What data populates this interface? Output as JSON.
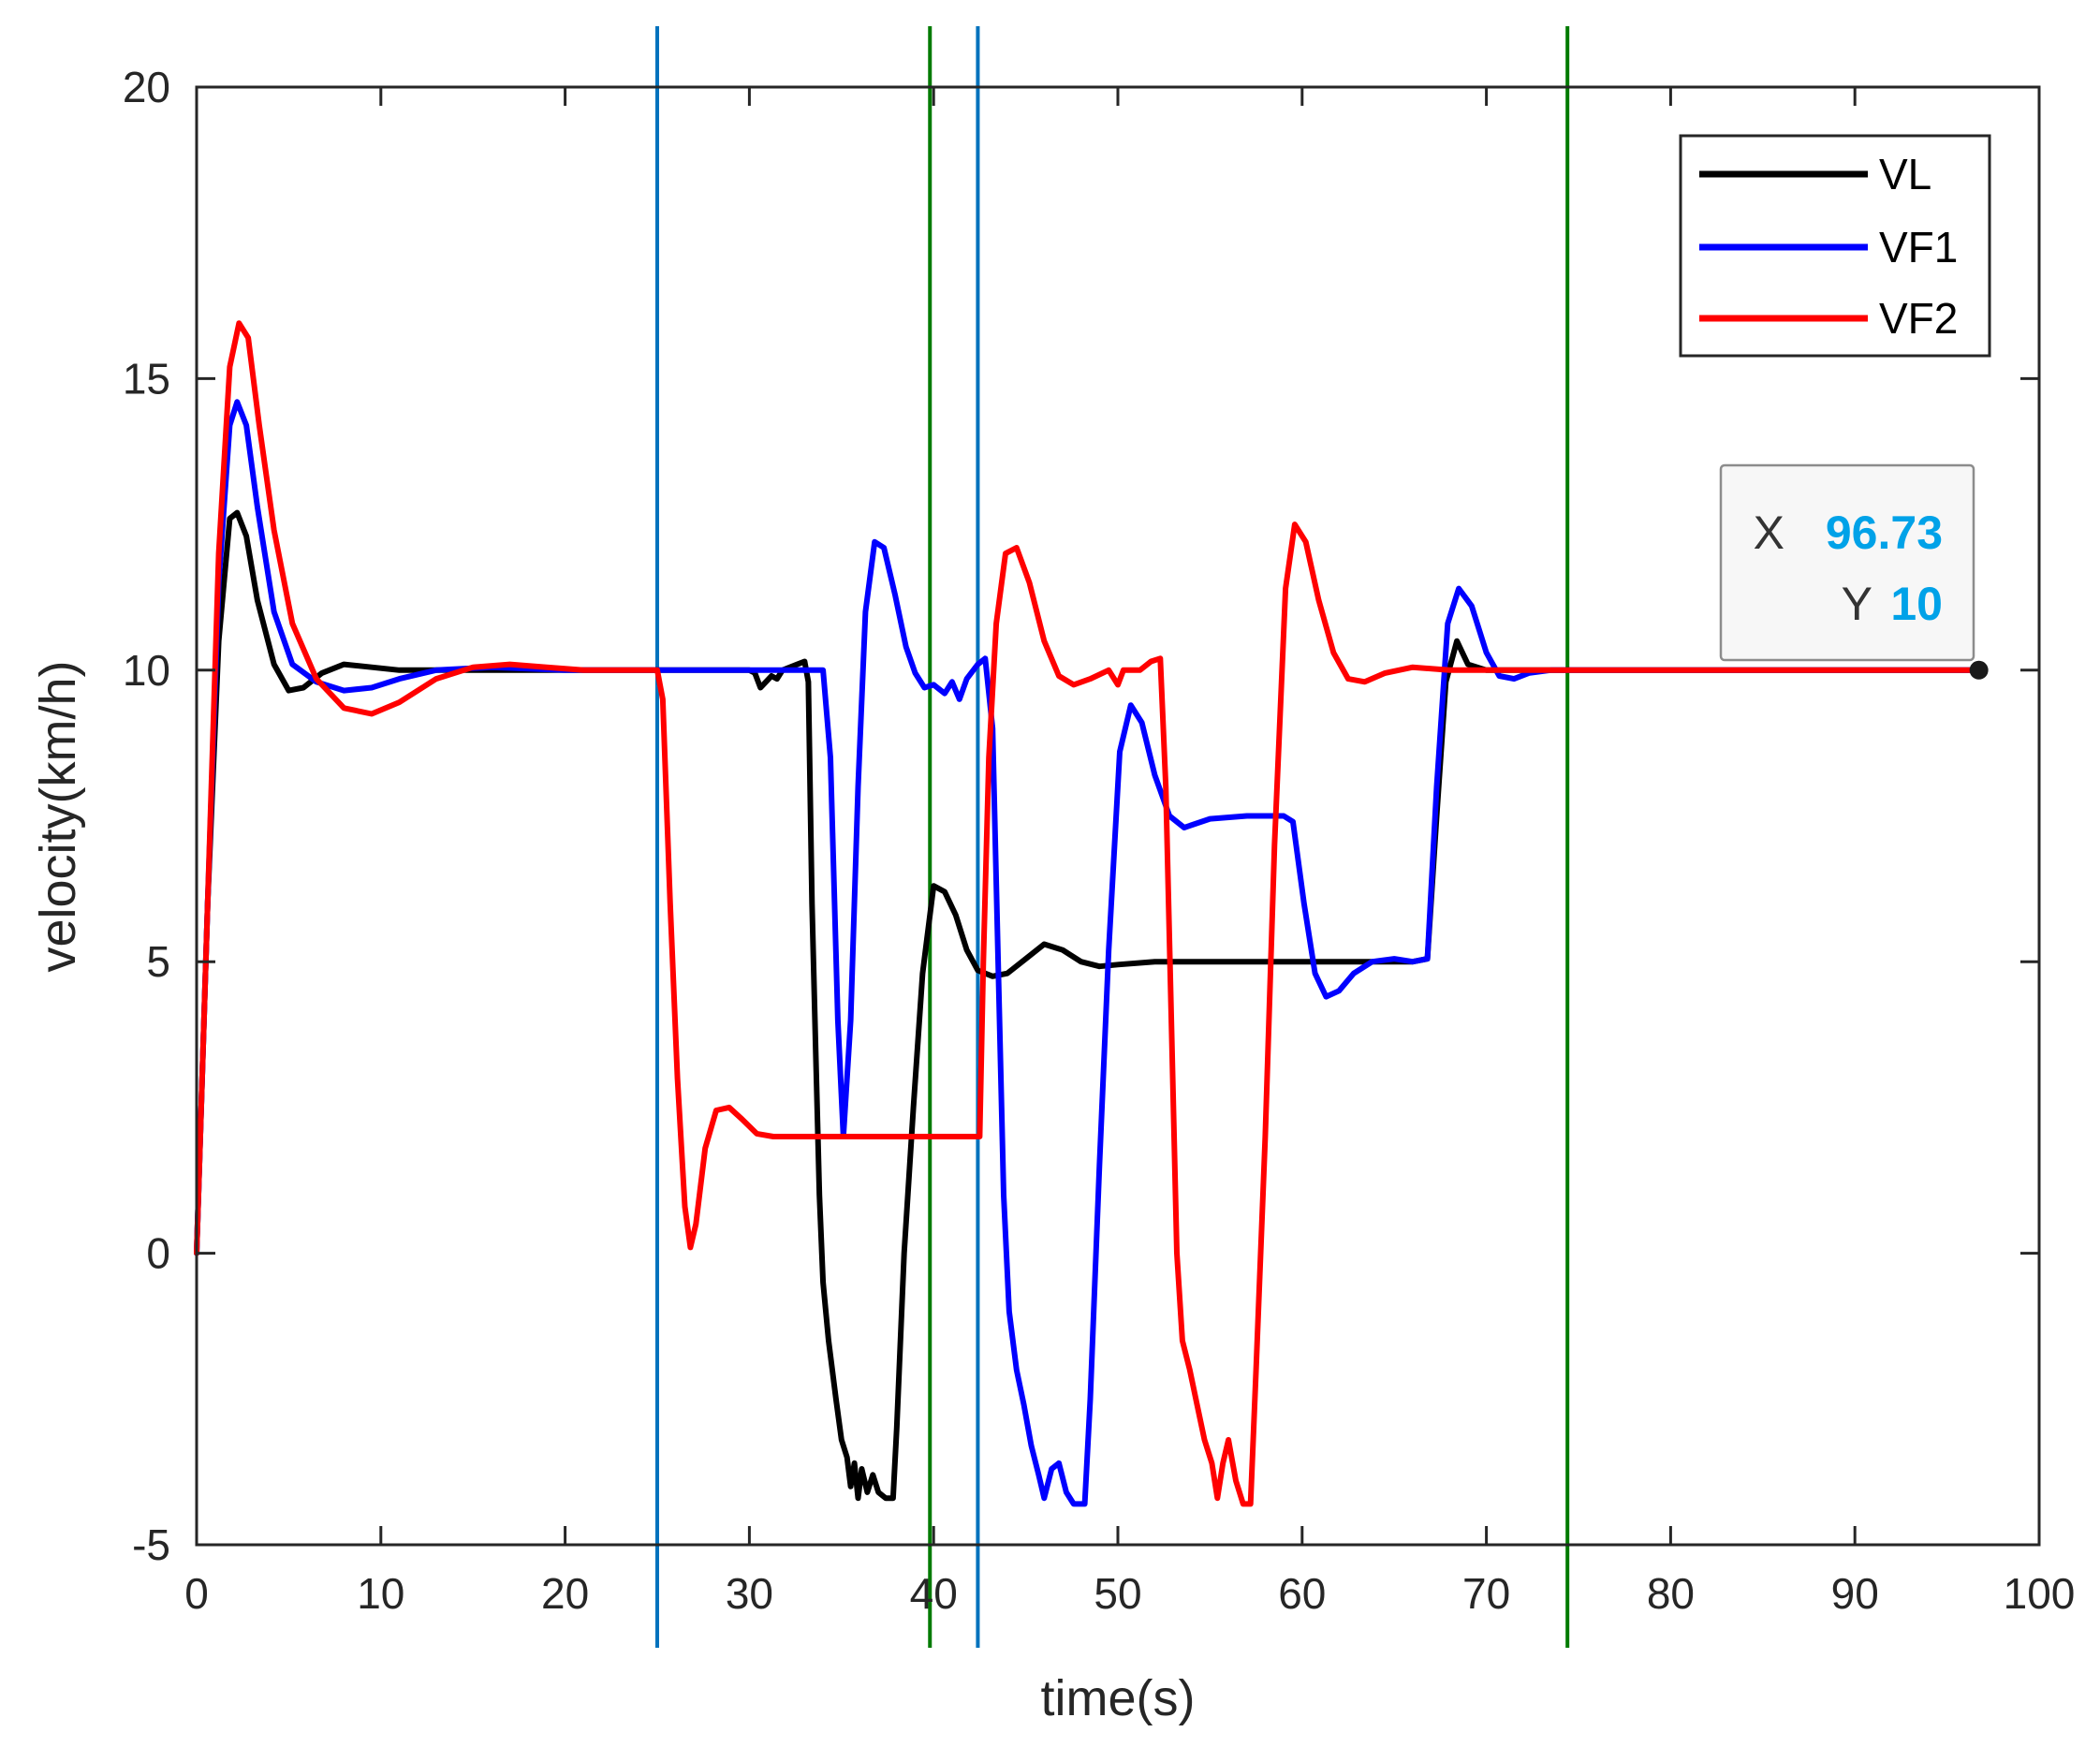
{
  "chart_data": {
    "type": "line",
    "title": "",
    "xlabel": "time(s)",
    "ylabel": "velocity(km/h)",
    "xlim": [
      0,
      100
    ],
    "ylim": [
      -5,
      20
    ],
    "xticks": [
      0,
      10,
      20,
      30,
      40,
      50,
      60,
      70,
      80,
      90,
      100
    ],
    "yticks": [
      -5,
      0,
      5,
      10,
      15,
      20
    ],
    "xtick_labels": [
      "0",
      "10",
      "20",
      "30",
      "40",
      "50",
      "60",
      "70",
      "80",
      "90",
      "100"
    ],
    "ytick_labels": [
      "-5",
      "0",
      "5",
      "10",
      "15",
      "20"
    ],
    "legend_position": "top-right",
    "series": [
      {
        "name": "VL",
        "color": "#000000",
        "points": [
          [
            0,
            0
          ],
          [
            0.6,
            6
          ],
          [
            1.2,
            10.5
          ],
          [
            1.8,
            12.6
          ],
          [
            2.2,
            12.7
          ],
          [
            2.7,
            12.3
          ],
          [
            3.3,
            11.2
          ],
          [
            4.2,
            10.1
          ],
          [
            5,
            9.65
          ],
          [
            5.8,
            9.7
          ],
          [
            6.8,
            9.95
          ],
          [
            8,
            10.1
          ],
          [
            9.5,
            10.05
          ],
          [
            11,
            10
          ],
          [
            13,
            10
          ],
          [
            20,
            10
          ],
          [
            25,
            10
          ],
          [
            30,
            10
          ],
          [
            30.3,
            9.95
          ],
          [
            30.6,
            9.7
          ],
          [
            30.9,
            9.8
          ],
          [
            31.2,
            9.9
          ],
          [
            31.5,
            9.85
          ],
          [
            31.8,
            10
          ],
          [
            32.2,
            10.05
          ],
          [
            32.6,
            10.1
          ],
          [
            33,
            10.15
          ],
          [
            33.2,
            9.8
          ],
          [
            33.4,
            6
          ],
          [
            33.6,
            3.5
          ],
          [
            33.8,
            1
          ],
          [
            34,
            -0.5
          ],
          [
            34.3,
            -1.5
          ],
          [
            34.7,
            -2.5
          ],
          [
            35,
            -3.2
          ],
          [
            35.3,
            -3.5
          ],
          [
            35.5,
            -4
          ],
          [
            35.7,
            -3.6
          ],
          [
            35.9,
            -4.2
          ],
          [
            36.1,
            -3.7
          ],
          [
            36.4,
            -4.1
          ],
          [
            36.7,
            -3.8
          ],
          [
            37,
            -4.1
          ],
          [
            37.4,
            -4.2
          ],
          [
            37.8,
            -4.2
          ],
          [
            38,
            -3
          ],
          [
            38.4,
            0
          ],
          [
            38.9,
            2.5
          ],
          [
            39.4,
            4.8
          ],
          [
            40,
            6.3
          ],
          [
            40.6,
            6.2
          ],
          [
            41.2,
            5.8
          ],
          [
            41.8,
            5.2
          ],
          [
            42.4,
            4.85
          ],
          [
            43.2,
            4.75
          ],
          [
            44,
            4.8
          ],
          [
            45,
            5.05
          ],
          [
            46,
            5.3
          ],
          [
            47,
            5.2
          ],
          [
            48,
            5.0
          ],
          [
            49,
            4.92
          ],
          [
            50,
            4.95
          ],
          [
            52,
            5.0
          ],
          [
            55,
            5
          ],
          [
            60,
            5
          ],
          [
            66,
            5
          ],
          [
            66.8,
            5.05
          ],
          [
            67.3,
            7.5
          ],
          [
            67.8,
            9.8
          ],
          [
            68.4,
            10.5
          ],
          [
            69,
            10.1
          ],
          [
            70,
            10
          ],
          [
            75,
            10
          ],
          [
            80,
            10
          ],
          [
            90,
            10
          ],
          [
            96.73,
            10
          ]
        ]
      },
      {
        "name": "VF1",
        "color": "#0000ff",
        "points": [
          [
            0,
            0
          ],
          [
            0.6,
            6
          ],
          [
            1.2,
            11.5
          ],
          [
            1.8,
            14.2
          ],
          [
            2.2,
            14.6
          ],
          [
            2.7,
            14.2
          ],
          [
            3.3,
            12.8
          ],
          [
            4.2,
            11
          ],
          [
            5.2,
            10.1
          ],
          [
            6.5,
            9.8
          ],
          [
            8,
            9.65
          ],
          [
            9.5,
            9.7
          ],
          [
            11,
            9.85
          ],
          [
            13,
            10
          ],
          [
            16,
            10.05
          ],
          [
            20,
            10
          ],
          [
            25,
            10
          ],
          [
            30,
            10
          ],
          [
            34,
            10
          ],
          [
            34.4,
            8.5
          ],
          [
            34.8,
            4
          ],
          [
            35.1,
            2
          ],
          [
            35.5,
            4
          ],
          [
            35.9,
            8
          ],
          [
            36.3,
            11
          ],
          [
            36.8,
            12.2
          ],
          [
            37.3,
            12.1
          ],
          [
            37.9,
            11.3
          ],
          [
            38.5,
            10.4
          ],
          [
            39,
            9.95
          ],
          [
            39.5,
            9.7
          ],
          [
            40,
            9.75
          ],
          [
            40.6,
            9.6
          ],
          [
            41,
            9.8
          ],
          [
            41.4,
            9.5
          ],
          [
            41.8,
            9.85
          ],
          [
            42.4,
            10.1
          ],
          [
            42.8,
            10.2
          ],
          [
            43.2,
            9
          ],
          [
            43.5,
            5
          ],
          [
            43.8,
            1
          ],
          [
            44.1,
            -1
          ],
          [
            44.5,
            -2
          ],
          [
            44.9,
            -2.6
          ],
          [
            45.3,
            -3.3
          ],
          [
            45.7,
            -3.8
          ],
          [
            46,
            -4.2
          ],
          [
            46.4,
            -3.7
          ],
          [
            46.8,
            -3.6
          ],
          [
            47.2,
            -4.1
          ],
          [
            47.6,
            -4.3
          ],
          [
            48.2,
            -4.3
          ],
          [
            48.5,
            -2.5
          ],
          [
            49,
            1.5
          ],
          [
            49.5,
            5.2
          ],
          [
            50.1,
            8.6
          ],
          [
            50.7,
            9.4
          ],
          [
            51.3,
            9.1
          ],
          [
            52,
            8.2
          ],
          [
            52.8,
            7.5
          ],
          [
            53.6,
            7.3
          ],
          [
            55,
            7.45
          ],
          [
            57,
            7.5
          ],
          [
            59,
            7.5
          ],
          [
            59.5,
            7.4
          ],
          [
            60.1,
            6
          ],
          [
            60.7,
            4.8
          ],
          [
            61.3,
            4.4
          ],
          [
            62,
            4.5
          ],
          [
            62.8,
            4.8
          ],
          [
            63.8,
            5.0
          ],
          [
            65,
            5.05
          ],
          [
            66,
            5
          ],
          [
            66.8,
            5.05
          ],
          [
            67.3,
            8
          ],
          [
            67.9,
            10.8
          ],
          [
            68.5,
            11.4
          ],
          [
            69.2,
            11.1
          ],
          [
            70,
            10.3
          ],
          [
            70.7,
            9.9
          ],
          [
            71.5,
            9.85
          ],
          [
            72.3,
            9.95
          ],
          [
            73.5,
            10
          ],
          [
            80,
            10
          ],
          [
            90,
            10
          ],
          [
            96.73,
            10
          ]
        ]
      },
      {
        "name": "VF2",
        "color": "#ff0000",
        "points": [
          [
            0,
            0
          ],
          [
            0.6,
            6
          ],
          [
            1.2,
            12
          ],
          [
            1.8,
            15.2
          ],
          [
            2.3,
            15.95
          ],
          [
            2.8,
            15.7
          ],
          [
            3.4,
            14.2
          ],
          [
            4.2,
            12.4
          ],
          [
            5.2,
            10.8
          ],
          [
            6.5,
            9.85
          ],
          [
            8,
            9.35
          ],
          [
            9.5,
            9.25
          ],
          [
            11,
            9.45
          ],
          [
            13,
            9.85
          ],
          [
            15,
            10.05
          ],
          [
            17,
            10.1
          ],
          [
            19,
            10.05
          ],
          [
            21,
            10
          ],
          [
            25,
            10
          ],
          [
            25.3,
            9.5
          ],
          [
            25.7,
            6
          ],
          [
            26.1,
            3
          ],
          [
            26.5,
            0.8
          ],
          [
            26.8,
            0.1
          ],
          [
            27.1,
            0.5
          ],
          [
            27.6,
            1.8
          ],
          [
            28.2,
            2.45
          ],
          [
            28.9,
            2.5
          ],
          [
            29.6,
            2.3
          ],
          [
            30.4,
            2.05
          ],
          [
            31.3,
            2
          ],
          [
            33,
            2
          ],
          [
            35,
            2
          ],
          [
            40,
            2
          ],
          [
            42.5,
            2
          ],
          [
            42.7,
            5
          ],
          [
            43,
            8.5
          ],
          [
            43.4,
            10.8
          ],
          [
            43.9,
            12
          ],
          [
            44.5,
            12.1
          ],
          [
            45.2,
            11.5
          ],
          [
            46,
            10.5
          ],
          [
            46.8,
            9.9
          ],
          [
            47.6,
            9.75
          ],
          [
            48.5,
            9.85
          ],
          [
            49.5,
            10.0
          ],
          [
            50,
            9.75
          ],
          [
            50.3,
            10.0
          ],
          [
            51.2,
            10
          ],
          [
            51.8,
            10.15
          ],
          [
            52.3,
            10.2
          ],
          [
            52.6,
            8
          ],
          [
            52.9,
            4
          ],
          [
            53.2,
            0
          ],
          [
            53.5,
            -1.5
          ],
          [
            53.9,
            -2
          ],
          [
            54.3,
            -2.6
          ],
          [
            54.7,
            -3.2
          ],
          [
            55.1,
            -3.6
          ],
          [
            55.4,
            -4.2
          ],
          [
            55.7,
            -3.6
          ],
          [
            56,
            -3.2
          ],
          [
            56.4,
            -3.9
          ],
          [
            56.8,
            -4.3
          ],
          [
            57.2,
            -4.3
          ],
          [
            57.5,
            -2
          ],
          [
            58,
            2
          ],
          [
            58.5,
            7
          ],
          [
            59.1,
            11.4
          ],
          [
            59.6,
            12.5
          ],
          [
            60.2,
            12.2
          ],
          [
            60.9,
            11.2
          ],
          [
            61.7,
            10.3
          ],
          [
            62.5,
            9.85
          ],
          [
            63.4,
            9.8
          ],
          [
            64.5,
            9.95
          ],
          [
            66,
            10.05
          ],
          [
            68,
            10
          ],
          [
            70,
            10
          ],
          [
            80,
            10
          ],
          [
            90,
            10
          ],
          [
            96.73,
            10
          ]
        ]
      }
    ],
    "vertical_lines": [
      {
        "x": 25,
        "color": "#0072bd"
      },
      {
        "x": 39.8,
        "color": "#007a00"
      },
      {
        "x": 42.4,
        "color": "#0072bd"
      },
      {
        "x": 74.4,
        "color": "#007a00"
      }
    ],
    "datatip": {
      "x_label": "X",
      "x_value": "96.73",
      "y_label": "Y",
      "y_value": "10",
      "value_color": "#00a2e8",
      "point": [
        96.73,
        10
      ]
    }
  }
}
